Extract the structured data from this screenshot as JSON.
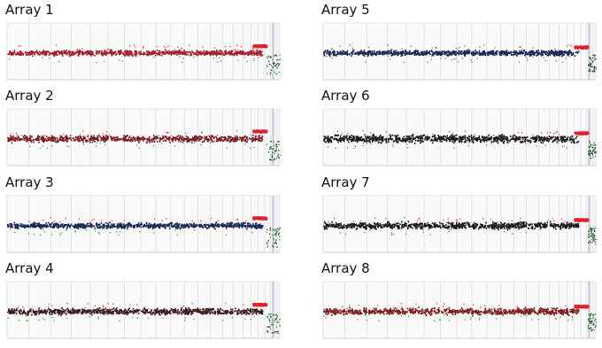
{
  "chart_data": [
    {
      "type": "scatter",
      "title": "Array 1",
      "baseline": 0,
      "noise": 0.1,
      "bright_x": [
        0.9,
        0.95
      ],
      "bright_level": 0.55,
      "drop_level": -1.6,
      "dot_color": "#a0202b"
    },
    {
      "type": "scatter",
      "title": "Array 2",
      "baseline": 0,
      "noise": 0.12,
      "bright_x": [
        0.9,
        0.95
      ],
      "bright_level": 0.6,
      "drop_level": -1.6,
      "dot_color": "#7a1f24"
    },
    {
      "type": "scatter",
      "title": "Array 3",
      "baseline": 0,
      "noise": 0.1,
      "bright_x": [
        0.9,
        0.95
      ],
      "bright_level": 0.6,
      "drop_level": -1.6,
      "dot_color": "#1a2a55"
    },
    {
      "type": "scatter",
      "title": "Array 4",
      "baseline": 0,
      "noise": 0.12,
      "bright_x": [
        0.9,
        0.95
      ],
      "bright_level": 0.55,
      "drop_level": -1.6,
      "dot_color": "#3a1a1a"
    },
    {
      "type": "scatter",
      "title": "Array 5",
      "baseline": 0,
      "noise": 0.1,
      "bright_x": [
        0.92,
        0.97
      ],
      "bright_level": 0.45,
      "drop_level": -1.4,
      "dot_color": "#1a2a55"
    },
    {
      "type": "scatter",
      "title": "Array 6",
      "baseline": 0,
      "noise": 0.14,
      "bright_x": [
        0.92,
        0.97
      ],
      "bright_level": 0.45,
      "drop_level": -1.4,
      "dot_color": "#1a1a1a"
    },
    {
      "type": "scatter",
      "title": "Array 7",
      "baseline": 0,
      "noise": 0.12,
      "bright_x": [
        0.92,
        0.97
      ],
      "bright_level": 0.45,
      "drop_level": -1.4,
      "dot_color": "#1a1a1a"
    },
    {
      "type": "scatter",
      "title": "Array 8",
      "baseline": 0,
      "noise": 0.12,
      "bright_x": [
        0.92,
        0.97
      ],
      "bright_level": 0.4,
      "drop_level": -1.4,
      "dot_color": "#7a1f24"
    }
  ],
  "colors": {
    "outlier_red": "#e0202a",
    "outlier_green": "#2a8a3a",
    "grid": "#dcdcdc",
    "marker": "#c8c8dc"
  }
}
